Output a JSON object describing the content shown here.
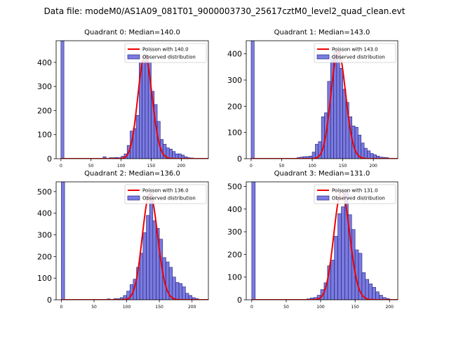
{
  "figure": {
    "suptitle": "Data file: modeM0/AS1A09_081T01_9000003730_25617cztM0_level2_quad_clean.evt"
  },
  "colors": {
    "bar_fill": "#7b7bdf",
    "bar_edge": "#1c1c7a",
    "poisson_line": "#ee0000",
    "axis": "#000000"
  },
  "chart_data": [
    {
      "type": "bar",
      "title": "Quadrant 0: Median=140.0",
      "median": 140,
      "xlim": [
        -8,
        245
      ],
      "ylim": [
        0,
        490
      ],
      "xticks": [
        0,
        50,
        100,
        150,
        200
      ],
      "yticks": [
        0,
        100,
        200,
        300,
        400
      ],
      "bin_width": 5,
      "bins": [
        [
          0,
          490
        ],
        [
          70,
          8
        ],
        [
          80,
          4
        ],
        [
          85,
          4
        ],
        [
          90,
          5
        ],
        [
          95,
          4
        ],
        [
          100,
          10
        ],
        [
          105,
          20
        ],
        [
          110,
          55
        ],
        [
          115,
          115
        ],
        [
          120,
          125
        ],
        [
          125,
          180
        ],
        [
          130,
          400
        ],
        [
          135,
          410
        ],
        [
          140,
          430
        ],
        [
          145,
          400
        ],
        [
          150,
          280
        ],
        [
          155,
          225
        ],
        [
          160,
          155
        ],
        [
          165,
          80
        ],
        [
          170,
          60
        ],
        [
          175,
          45
        ],
        [
          180,
          40
        ],
        [
          185,
          30
        ],
        [
          190,
          20
        ],
        [
          195,
          20
        ],
        [
          200,
          15
        ],
        [
          205,
          8
        ],
        [
          210,
          4
        ],
        [
          215,
          3
        ]
      ],
      "legend": [
        "Poisson with 140.0",
        "Observed distribution"
      ]
    },
    {
      "type": "bar",
      "title": "Quadrant 1: Median=143.0",
      "median": 143,
      "xlim": [
        -8,
        240
      ],
      "ylim": [
        0,
        450
      ],
      "xticks": [
        0,
        50,
        100,
        150,
        200
      ],
      "yticks": [
        0,
        100,
        200,
        300,
        400
      ],
      "bin_width": 5,
      "bins": [
        [
          0,
          450
        ],
        [
          75,
          4
        ],
        [
          80,
          6
        ],
        [
          85,
          8
        ],
        [
          90,
          8
        ],
        [
          95,
          10
        ],
        [
          100,
          25
        ],
        [
          105,
          55
        ],
        [
          110,
          65
        ],
        [
          115,
          160
        ],
        [
          120,
          175
        ],
        [
          125,
          295
        ],
        [
          130,
          390
        ],
        [
          135,
          410
        ],
        [
          140,
          410
        ],
        [
          145,
          345
        ],
        [
          150,
          265
        ],
        [
          155,
          215
        ],
        [
          160,
          160
        ],
        [
          165,
          125
        ],
        [
          170,
          120
        ],
        [
          175,
          90
        ],
        [
          180,
          60
        ],
        [
          185,
          40
        ],
        [
          190,
          30
        ],
        [
          195,
          20
        ],
        [
          200,
          15
        ],
        [
          205,
          10
        ],
        [
          210,
          6
        ],
        [
          215,
          5
        ],
        [
          220,
          4
        ]
      ],
      "legend": [
        "Poisson with 143.0",
        "Observed distribution"
      ]
    },
    {
      "type": "bar",
      "title": "Quadrant 2: Median=136.0",
      "median": 136,
      "xlim": [
        -8,
        225
      ],
      "ylim": [
        0,
        545
      ],
      "xticks": [
        0,
        50,
        100,
        150,
        200
      ],
      "yticks": [
        0,
        100,
        200,
        300,
        400,
        500
      ],
      "bin_width": 5,
      "bins": [
        [
          0,
          545
        ],
        [
          70,
          4
        ],
        [
          80,
          5
        ],
        [
          85,
          5
        ],
        [
          90,
          10
        ],
        [
          95,
          20
        ],
        [
          100,
          40
        ],
        [
          105,
          70
        ],
        [
          110,
          95
        ],
        [
          115,
          150
        ],
        [
          120,
          215
        ],
        [
          125,
          310
        ],
        [
          130,
          390
        ],
        [
          135,
          490
        ],
        [
          140,
          365
        ],
        [
          145,
          330
        ],
        [
          150,
          280
        ],
        [
          155,
          195
        ],
        [
          160,
          175
        ],
        [
          165,
          150
        ],
        [
          170,
          105
        ],
        [
          175,
          80
        ],
        [
          180,
          75
        ],
        [
          185,
          60
        ],
        [
          190,
          30
        ],
        [
          195,
          20
        ],
        [
          200,
          10
        ],
        [
          205,
          5
        ]
      ],
      "legend": [
        "Poisson with 136.0",
        "Observed distribution"
      ]
    },
    {
      "type": "bar",
      "title": "Quadrant 3: Median=131.0",
      "median": 131,
      "xlim": [
        -8,
        212
      ],
      "ylim": [
        0,
        520
      ],
      "xticks": [
        0,
        50,
        100,
        150,
        200
      ],
      "yticks": [
        0,
        100,
        200,
        300,
        400,
        500
      ],
      "bin_width": 5,
      "bins": [
        [
          0,
          520
        ],
        [
          80,
          4
        ],
        [
          85,
          8
        ],
        [
          90,
          10
        ],
        [
          95,
          20
        ],
        [
          100,
          45
        ],
        [
          105,
          75
        ],
        [
          110,
          150
        ],
        [
          115,
          175
        ],
        [
          120,
          280
        ],
        [
          125,
          380
        ],
        [
          130,
          410
        ],
        [
          135,
          480
        ],
        [
          140,
          375
        ],
        [
          145,
          310
        ],
        [
          150,
          220
        ],
        [
          155,
          205
        ],
        [
          160,
          120
        ],
        [
          165,
          90
        ],
        [
          170,
          70
        ],
        [
          175,
          55
        ],
        [
          180,
          35
        ],
        [
          185,
          20
        ],
        [
          190,
          10
        ],
        [
          195,
          5
        ]
      ],
      "legend": [
        "Poisson with 131.0",
        "Observed distribution"
      ]
    }
  ]
}
